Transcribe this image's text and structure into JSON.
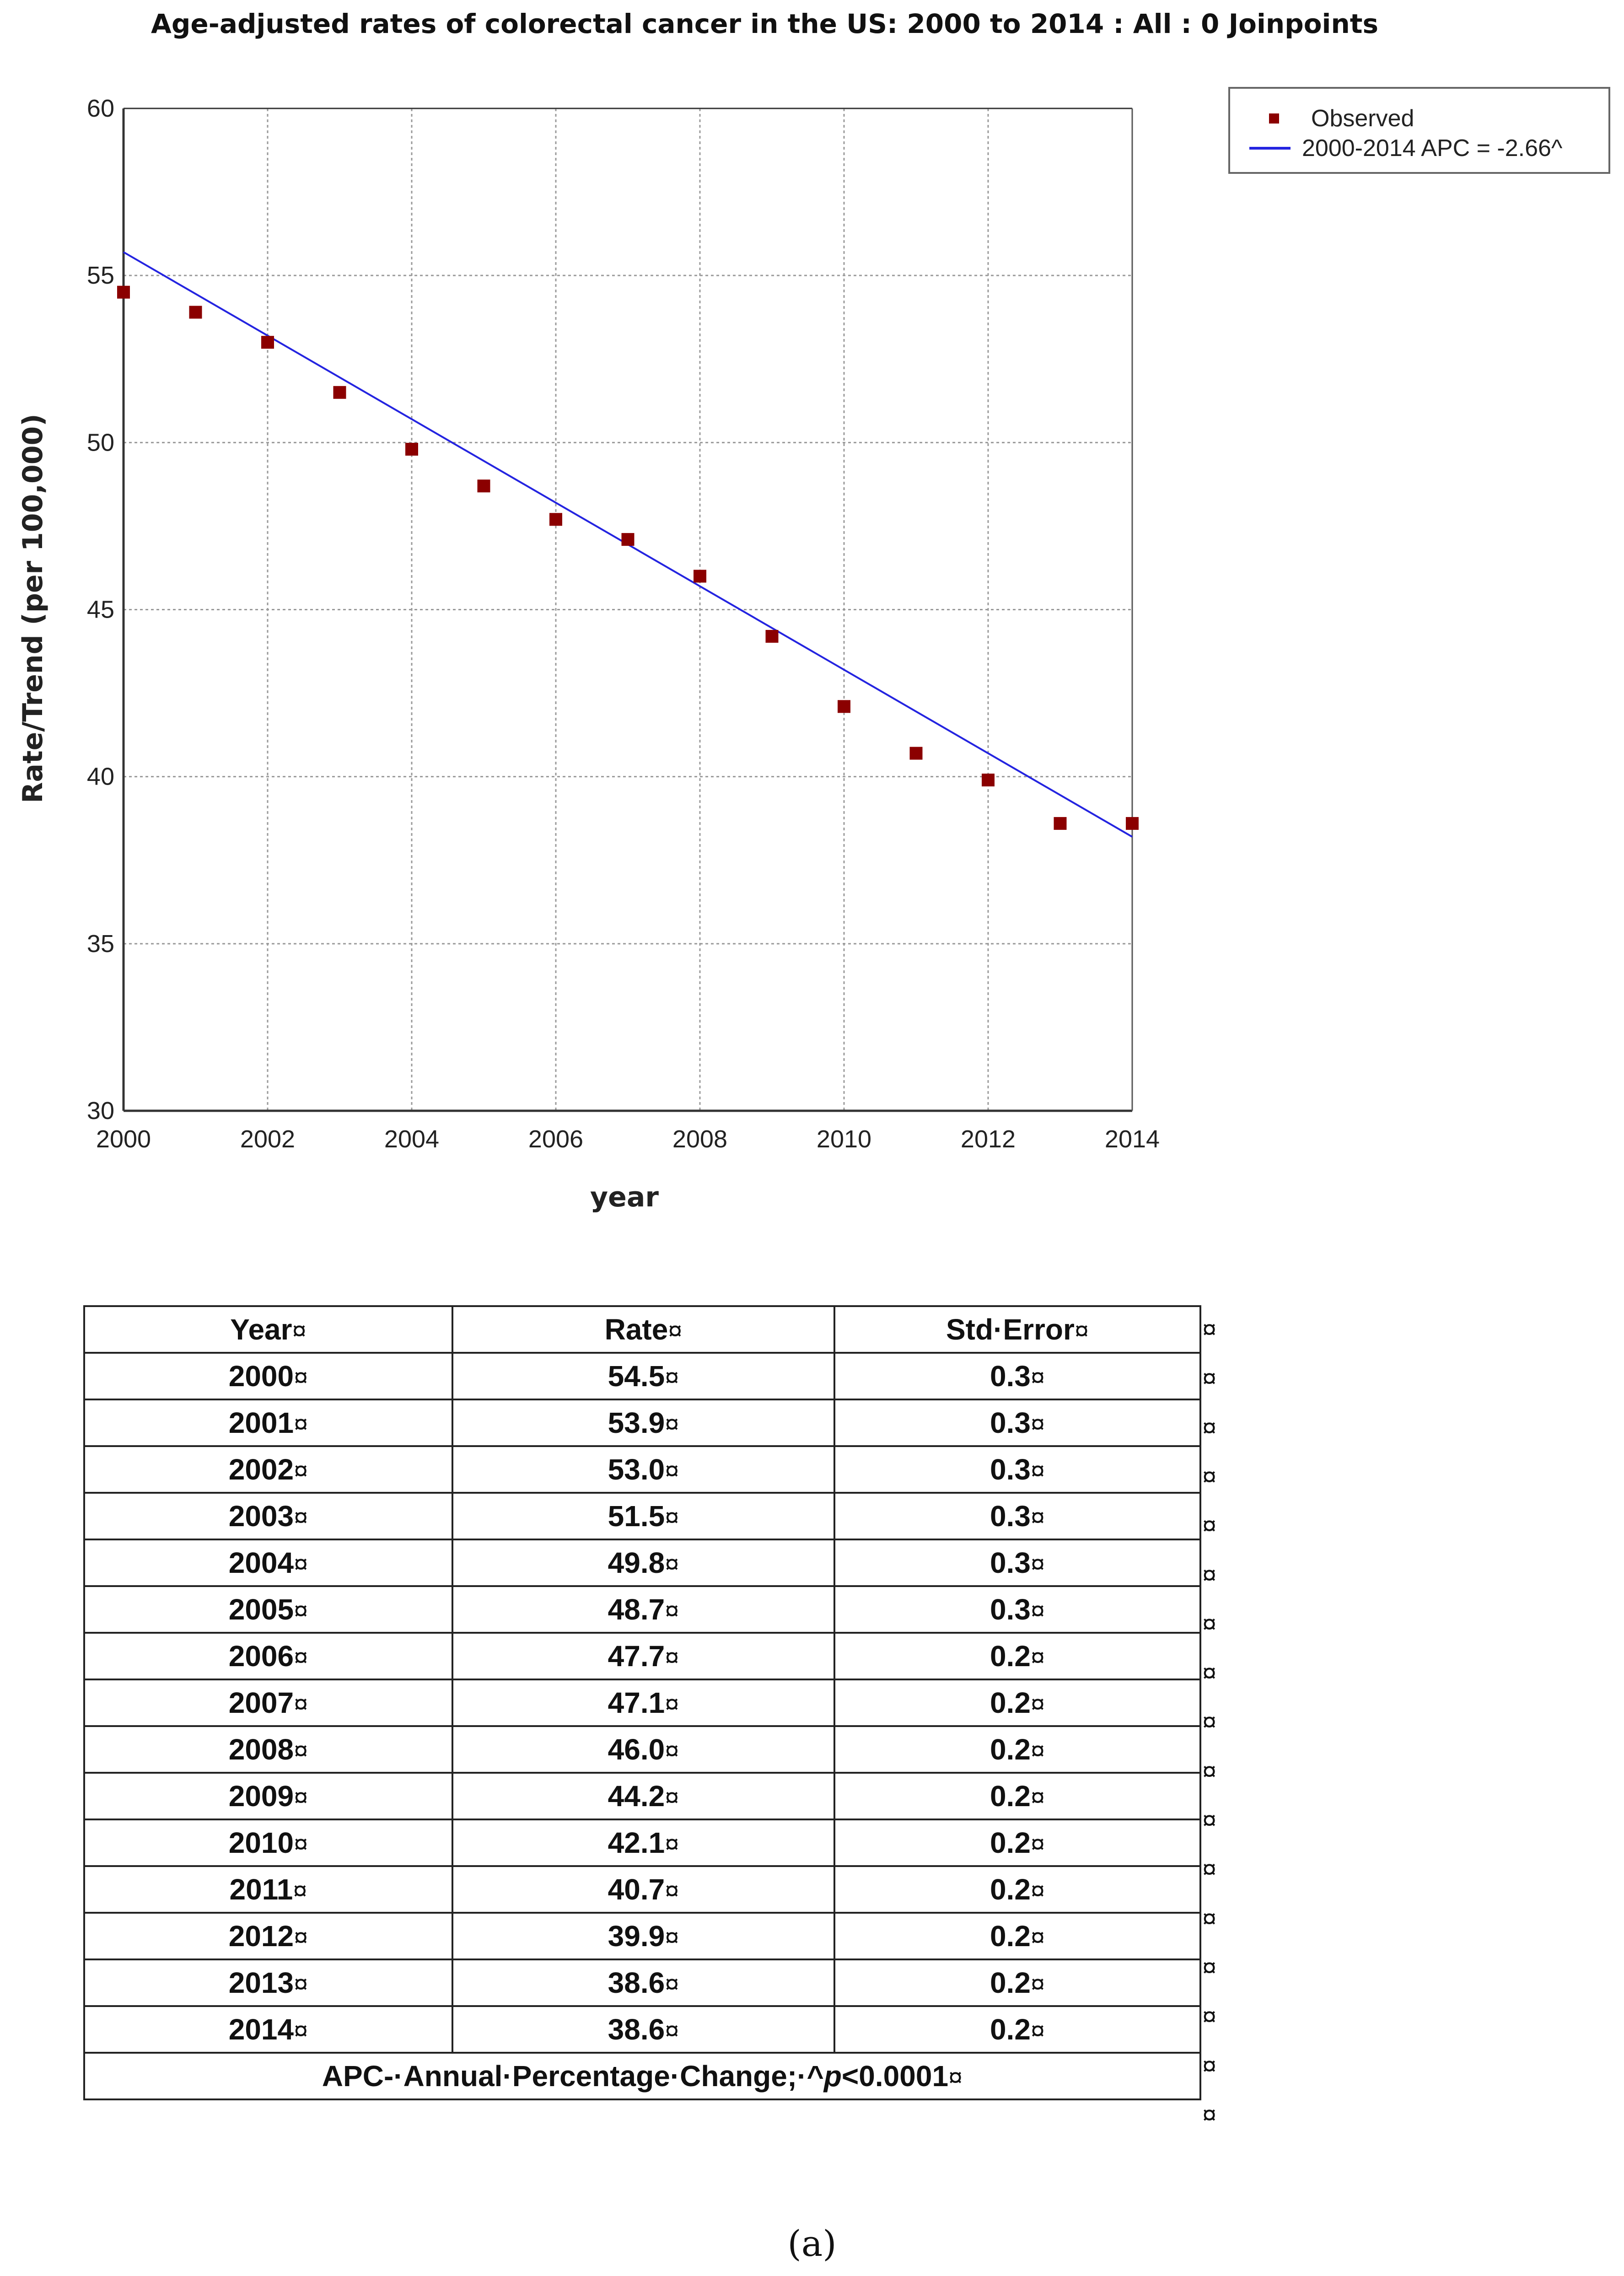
{
  "chart_data": {
    "type": "scatter",
    "title": "Age-adjusted rates of colorectal cancer in the US: 2000 to 2014 : All : 0 Joinpoints",
    "xlabel": "year",
    "ylabel": "Rate/Trend (per 100,000)",
    "xlim": [
      2000,
      2014
    ],
    "ylim": [
      30,
      60
    ],
    "x_ticks": [
      "2000",
      "2002",
      "2004",
      "2006",
      "2008",
      "2010",
      "2012",
      "2014"
    ],
    "y_ticks": [
      "30",
      "35",
      "40",
      "45",
      "50",
      "55",
      "60"
    ],
    "grid": true,
    "legend_position": "outside-top-right",
    "series": [
      {
        "name": "Observed",
        "kind": "markers",
        "color": "#8b0000",
        "x": [
          2000,
          2001,
          2002,
          2003,
          2004,
          2005,
          2006,
          2007,
          2008,
          2009,
          2010,
          2011,
          2012,
          2013,
          2014
        ],
        "y": [
          54.5,
          53.9,
          53.0,
          51.5,
          49.8,
          48.7,
          47.7,
          47.1,
          46.0,
          44.2,
          42.1,
          40.7,
          39.9,
          38.6,
          38.6
        ]
      },
      {
        "name": "2000-2014 APC  = -2.66^",
        "kind": "line",
        "color": "#2424e0",
        "x": [
          2000,
          2014
        ],
        "y": [
          55.7,
          38.2
        ]
      }
    ]
  },
  "table": {
    "headers": [
      "Year",
      "Rate",
      "Std·Error"
    ],
    "rows": [
      [
        "2000",
        "54.5",
        "0.3"
      ],
      [
        "2001",
        "53.9",
        "0.3"
      ],
      [
        "2002",
        "53.0",
        "0.3"
      ],
      [
        "2003",
        "51.5",
        "0.3"
      ],
      [
        "2004",
        "49.8",
        "0.3"
      ],
      [
        "2005",
        "48.7",
        "0.3"
      ],
      [
        "2006",
        "47.7",
        "0.2"
      ],
      [
        "2007",
        "47.1",
        "0.2"
      ],
      [
        "2008",
        "46.0",
        "0.2"
      ],
      [
        "2009",
        "44.2",
        "0.2"
      ],
      [
        "2010",
        "42.1",
        "0.2"
      ],
      [
        "2011",
        "40.7",
        "0.2"
      ],
      [
        "2012",
        "39.9",
        "0.2"
      ],
      [
        "2013",
        "38.6",
        "0.2"
      ],
      [
        "2014",
        "38.6",
        "0.2"
      ]
    ],
    "footer_prefix": "APC-·Annual·Percentage·Change;·^",
    "footer_p": "p",
    "footer_suffix": "<0.0001",
    "cell_mark": "¤"
  },
  "caption": "(a)"
}
